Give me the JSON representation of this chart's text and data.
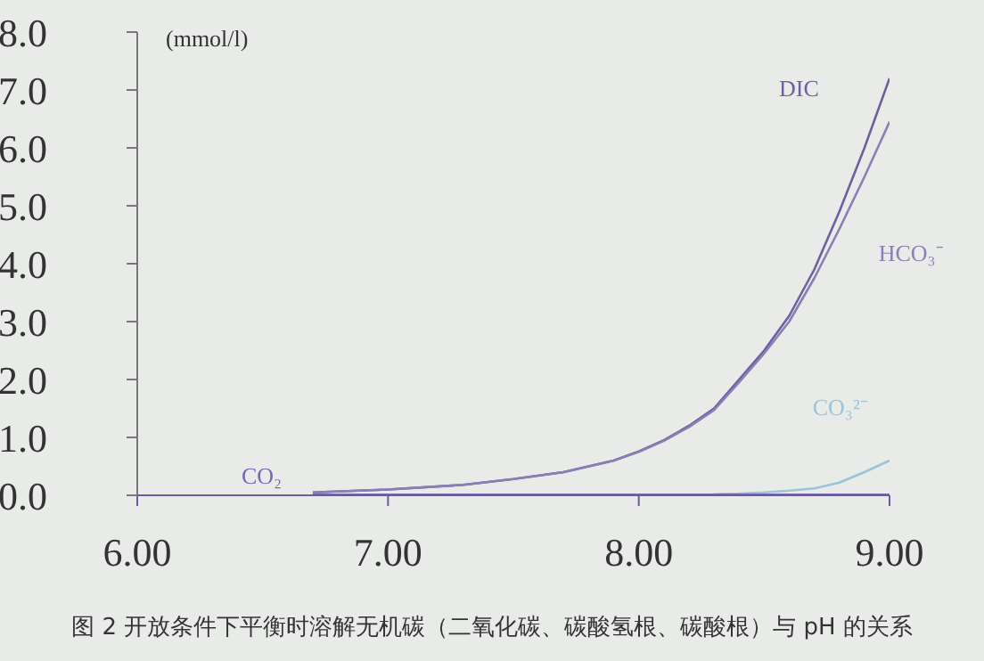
{
  "chart_data": {
    "type": "line",
    "ylabel": "(mmol/l)",
    "annotations": [
      "图 2 开放条件下平衡时溶解无机碳（二氧化碳、碳酸氢根、碳酸根）与 pH 的关系"
    ],
    "x": [
      6.7,
      7.0,
      7.3,
      7.5,
      7.7,
      7.9,
      8.0,
      8.1,
      8.2,
      8.3,
      8.4,
      8.5,
      8.6,
      8.7,
      8.8,
      8.9,
      9.0
    ],
    "series": [
      {
        "name": "DIC",
        "color": "#6f5f9e",
        "values": [
          0.05,
          0.1,
          0.18,
          0.28,
          0.4,
          0.6,
          0.76,
          0.95,
          1.2,
          1.5,
          2.0,
          2.5,
          3.1,
          3.9,
          4.9,
          6.0,
          7.2
        ]
      },
      {
        "name": "HCO₃⁻",
        "color": "#8a7fb4",
        "values": [
          0.05,
          0.1,
          0.18,
          0.28,
          0.4,
          0.6,
          0.75,
          0.94,
          1.18,
          1.47,
          1.95,
          2.45,
          3.0,
          3.75,
          4.6,
          5.5,
          6.45
        ]
      },
      {
        "name": "CO₃²⁻",
        "color": "#9cc4d8",
        "values": [
          null,
          null,
          null,
          null,
          null,
          null,
          null,
          null,
          null,
          0.02,
          0.03,
          0.05,
          0.08,
          0.12,
          0.22,
          0.4,
          0.6
        ]
      },
      {
        "name": "CO₂",
        "color": "#7a68b0",
        "values": [
          0.01,
          0.01,
          0.01,
          0.01,
          0.01,
          0.01,
          0.01,
          0.01,
          0.01,
          0.01,
          0.01,
          0.01,
          0.01,
          0.01,
          0.01,
          0.01,
          0.01
        ]
      }
    ],
    "xlim": [
      6,
      9
    ],
    "xticks": [
      {
        "value": 6,
        "label": "6.00"
      },
      {
        "value": 7,
        "label": "7.00"
      },
      {
        "value": 8,
        "label": "8.00"
      },
      {
        "value": 9,
        "label": "9.00"
      }
    ],
    "ylim": [
      0,
      8
    ],
    "yticks": [
      {
        "value": 0,
        "label": "0.0"
      },
      {
        "value": 1,
        "label": "1.0"
      },
      {
        "value": 2,
        "label": "2.0"
      },
      {
        "value": 3,
        "label": "3.0"
      },
      {
        "value": 4,
        "label": "4.0"
      },
      {
        "value": 5,
        "label": "5.0"
      },
      {
        "value": 6,
        "label": "6.0"
      },
      {
        "value": 7,
        "label": "7.0"
      },
      {
        "value": 8,
        "label": "8.0"
      }
    ],
    "grid": false,
    "legend": false,
    "marker": "none",
    "line_style": "solid"
  }
}
